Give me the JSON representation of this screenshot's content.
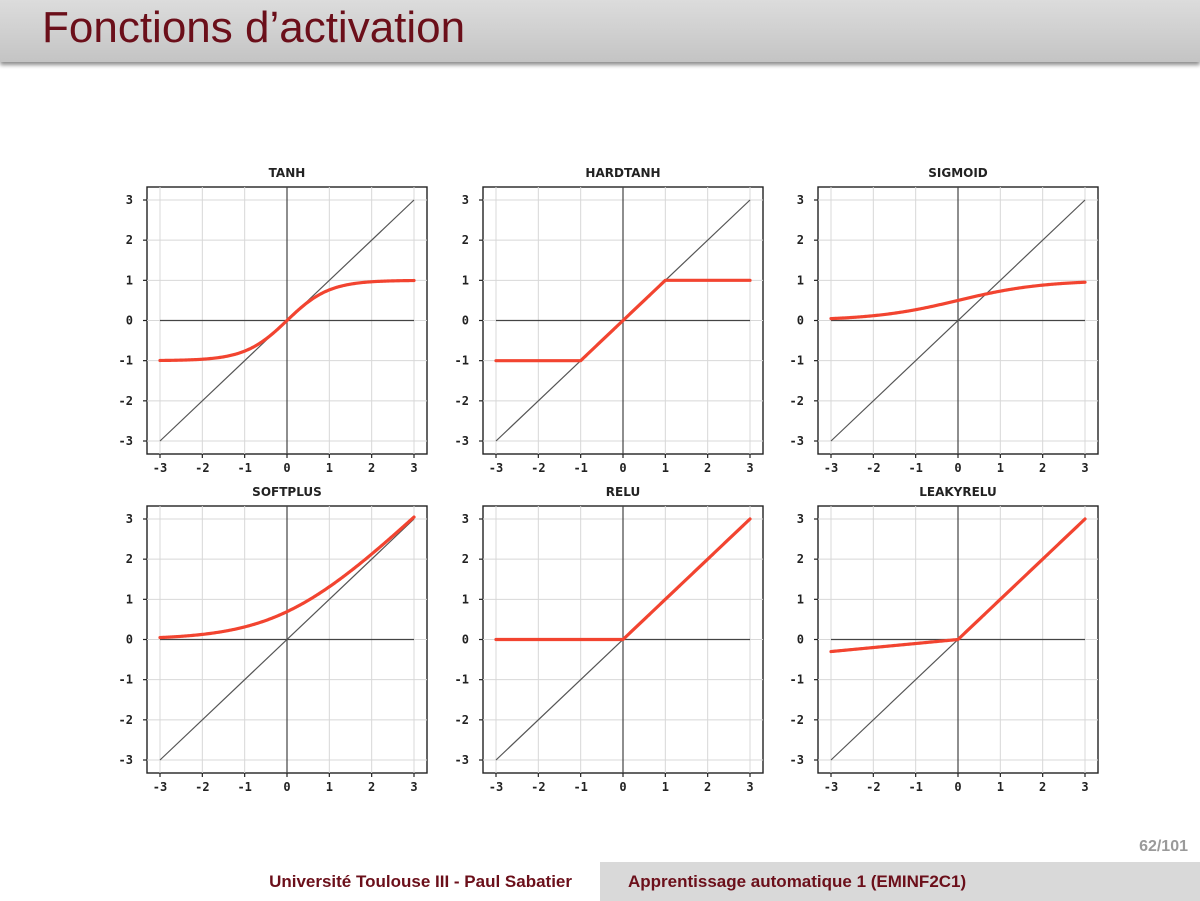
{
  "slide": {
    "title": "Fonctions d’activation",
    "page": "62/101"
  },
  "footer": {
    "left": "Université Toulouse III - Paul Sabatier",
    "right": "Apprentissage automatique 1 (EMINF2C1)"
  },
  "colors": {
    "curve": "#f24430",
    "identity": "#555555",
    "grid": "#d8d8d8",
    "title": "#6b0f1a"
  },
  "chart_data": [
    {
      "type": "line",
      "title": "TANH",
      "function": "tanh",
      "xlim": [
        -3,
        3
      ],
      "ylim": [
        -3,
        3
      ],
      "xticks": [
        "-3",
        "-2",
        "-1",
        "0",
        "1",
        "2",
        "3"
      ],
      "yticks": [
        "-3",
        "-2",
        "-1",
        "0",
        "1",
        "2",
        "3"
      ],
      "grid": true,
      "series": [
        {
          "x": [
            -3,
            -2,
            -1,
            0,
            1,
            2,
            3
          ],
          "y": [
            -0.995,
            -0.964,
            -0.762,
            0,
            0.762,
            0.964,
            0.995
          ]
        }
      ]
    },
    {
      "type": "line",
      "title": "HARDTANH",
      "function": "hardtanh",
      "xlim": [
        -3,
        3
      ],
      "ylim": [
        -3,
        3
      ],
      "xticks": [
        "-3",
        "-2",
        "-1",
        "0",
        "1",
        "2",
        "3"
      ],
      "yticks": [
        "-3",
        "-2",
        "-1",
        "0",
        "1",
        "2",
        "3"
      ],
      "grid": true,
      "series": [
        {
          "x": [
            -3,
            -2,
            -1,
            0,
            1,
            2,
            3
          ],
          "y": [
            -1,
            -1,
            -1,
            0,
            1,
            1,
            1
          ]
        }
      ]
    },
    {
      "type": "line",
      "title": "SIGMOID",
      "function": "sigmoid",
      "xlim": [
        -3,
        3
      ],
      "ylim": [
        -3,
        3
      ],
      "xticks": [
        "-3",
        "-2",
        "-1",
        "0",
        "1",
        "2",
        "3"
      ],
      "yticks": [
        "-3",
        "-2",
        "-1",
        "0",
        "1",
        "2",
        "3"
      ],
      "grid": true,
      "series": [
        {
          "x": [
            -3,
            -2,
            -1,
            0,
            1,
            2,
            3
          ],
          "y": [
            0.047,
            0.119,
            0.269,
            0.5,
            0.731,
            0.881,
            0.953
          ]
        }
      ]
    },
    {
      "type": "line",
      "title": "SOFTPLUS",
      "function": "softplus",
      "xlim": [
        -3,
        3
      ],
      "ylim": [
        -3,
        3
      ],
      "xticks": [
        "-3",
        "-2",
        "-1",
        "0",
        "1",
        "2",
        "3"
      ],
      "yticks": [
        "-3",
        "-2",
        "-1",
        "0",
        "1",
        "2",
        "3"
      ],
      "grid": true,
      "series": [
        {
          "x": [
            -3,
            -2,
            -1,
            0,
            1,
            2,
            3
          ],
          "y": [
            0.049,
            0.127,
            0.313,
            0.693,
            1.313,
            2.127,
            3.049
          ]
        }
      ]
    },
    {
      "type": "line",
      "title": "RELU",
      "function": "relu",
      "xlim": [
        -3,
        3
      ],
      "ylim": [
        -3,
        3
      ],
      "xticks": [
        "-3",
        "-2",
        "-1",
        "0",
        "1",
        "2",
        "3"
      ],
      "yticks": [
        "-3",
        "-2",
        "-1",
        "0",
        "1",
        "2",
        "3"
      ],
      "grid": true,
      "series": [
        {
          "x": [
            -3,
            -2,
            -1,
            0,
            1,
            2,
            3
          ],
          "y": [
            0,
            0,
            0,
            0,
            1,
            2,
            3
          ]
        }
      ]
    },
    {
      "type": "line",
      "title": "LEAKYRELU",
      "function": "leakyrelu",
      "xlim": [
        -3,
        3
      ],
      "ylim": [
        -3,
        3
      ],
      "xticks": [
        "-3",
        "-2",
        "-1",
        "0",
        "1",
        "2",
        "3"
      ],
      "yticks": [
        "-3",
        "-2",
        "-1",
        "0",
        "1",
        "2",
        "3"
      ],
      "grid": true,
      "series": [
        {
          "x": [
            -3,
            -2,
            -1,
            0,
            1,
            2,
            3
          ],
          "y": [
            -0.3,
            -0.2,
            -0.1,
            0,
            1,
            2,
            3
          ]
        }
      ]
    }
  ]
}
